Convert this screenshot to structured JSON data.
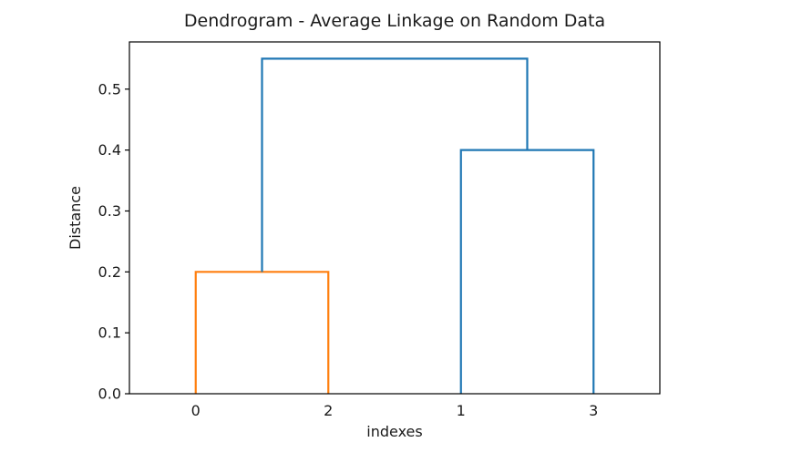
{
  "chart_data": {
    "type": "line",
    "subtype": "dendrogram",
    "title": "Dendrogram - Average Linkage on Random Data",
    "xlabel": "indexes",
    "ylabel": "Distance",
    "grid": false,
    "legend": null,
    "xlim": [
      0,
      40
    ],
    "ylim": [
      0,
      0.5775
    ],
    "yticks": [
      {
        "v": 0.0,
        "label": "0.0"
      },
      {
        "v": 0.1,
        "label": "0.1"
      },
      {
        "v": 0.2,
        "label": "0.2"
      },
      {
        "v": 0.3,
        "label": "0.3"
      },
      {
        "v": 0.4,
        "label": "0.4"
      },
      {
        "v": 0.5,
        "label": "0.5"
      }
    ],
    "leaves": [
      {
        "label": "0",
        "position": 5
      },
      {
        "label": "2",
        "position": 15
      },
      {
        "label": "1",
        "position": 25
      },
      {
        "label": "3",
        "position": 35
      }
    ],
    "links": [
      {
        "merges": [
          "0",
          "2"
        ],
        "height": 0.2,
        "color": "#ff7f0e",
        "icoord": [
          5,
          5,
          15,
          15
        ],
        "dcoord": [
          0,
          0.2,
          0.2,
          0
        ]
      },
      {
        "merges": [
          "1",
          "3"
        ],
        "height": 0.4,
        "color": "#1f77b4",
        "icoord": [
          25,
          25,
          35,
          35
        ],
        "dcoord": [
          0,
          0.4,
          0.4,
          0
        ]
      },
      {
        "merges": [
          "(0,2)",
          "(1,3)"
        ],
        "height": 0.55,
        "color": "#1f77b4",
        "icoord": [
          10,
          10,
          30,
          30
        ],
        "dcoord": [
          0.2,
          0.55,
          0.55,
          0.4
        ]
      }
    ],
    "colors": {
      "cluster_below_threshold": "#ff7f0e",
      "above_threshold": "#1f77b4",
      "spine": "#000000",
      "text": "#1a1a1a"
    }
  }
}
